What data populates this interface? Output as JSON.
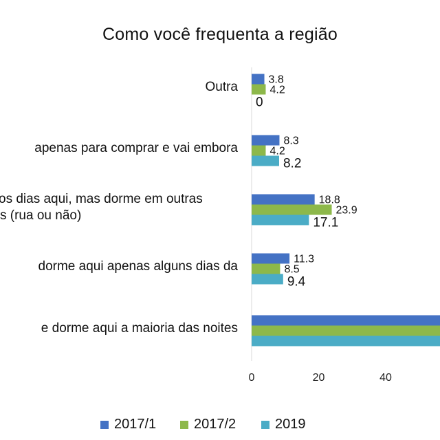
{
  "chart_data": {
    "type": "bar",
    "orientation": "horizontal",
    "title": "Como você frequenta a região",
    "categories": [
      "Outra",
      "apenas para comprar e vai embora",
      "os dias aqui, mas dorme em outras|s (rua ou não)",
      "dorme aqui apenas alguns dias da",
      "e dorme aqui a maioria das noites"
    ],
    "series": [
      {
        "name": "2017/1",
        "color": "#4472C4",
        "values": [
          3.8,
          8.3,
          18.8,
          11.3,
          null
        ]
      },
      {
        "name": "2017/2",
        "color": "#8DB84A",
        "values": [
          4.2,
          4.2,
          23.9,
          8.5,
          null
        ]
      },
      {
        "name": "2019",
        "color": "#4BACC6",
        "values": [
          0,
          8.2,
          17.1,
          9.4,
          null
        ]
      }
    ],
    "data_labels": [
      [
        "3.8",
        "4.2",
        "0"
      ],
      [
        "8.3",
        "4.2",
        "8.2"
      ],
      [
        "18.8",
        "23.9",
        "17.1"
      ],
      [
        "11.3",
        "8.5",
        "9.4"
      ],
      [
        "",
        "",
        ""
      ]
    ],
    "x_ticks": [
      "0",
      "20",
      "40"
    ],
    "xlim": [
      0,
      60
    ],
    "legend_position": "bottom"
  }
}
